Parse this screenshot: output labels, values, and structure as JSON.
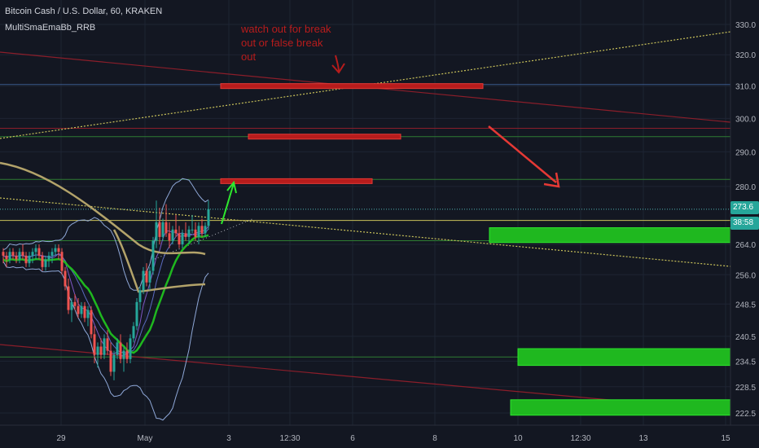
{
  "header": {
    "title": "Bitcoin Cash / U.S. Dollar, 60, KRAKEN",
    "indicator": "MultiSmaEmaBb_RRB"
  },
  "price_labels": {
    "last_price": "273.6",
    "countdown": "38:58"
  },
  "annotation": {
    "lines": [
      "watch out for break",
      "out or  false break",
      "out"
    ]
  },
  "colors": {
    "background": "#131722",
    "grid": "#1e2433",
    "axis_text": "#b2b5be",
    "up_candle": "#26a69a",
    "down_candle": "#ef5350",
    "annotation_red": "#b71c1c",
    "zone_green": "#1fb81f",
    "trend_yellow": "#c9c25a",
    "trend_red": "#8b1e2a",
    "hline_green": "#2e7d32",
    "hline_blue": "#2962ff",
    "last_price": "#26a69a"
  },
  "chart_data": {
    "type": "candlestick",
    "title": "Bitcoin Cash / U.S. Dollar, 60, KRAKEN",
    "y_axis": {
      "scale": "log",
      "ticks": [
        "330.0",
        "320.0",
        "310.0",
        "300.0",
        "290.0",
        "280.0",
        "273.6",
        "264.0",
        "256.0",
        "248.5",
        "240.5",
        "234.5",
        "228.5",
        "222.5"
      ],
      "range": [
        220,
        335
      ]
    },
    "x_axis": {
      "ticks": [
        "29",
        "May",
        "3",
        "12:30",
        "6",
        "8",
        "10",
        "12:30",
        "13",
        "15"
      ]
    },
    "grid": true,
    "last_price": 273.6,
    "candles": [
      {
        "o": 262,
        "h": 263,
        "l": 259,
        "c": 261
      },
      {
        "o": 261,
        "h": 262,
        "l": 258,
        "c": 260
      },
      {
        "o": 260,
        "h": 263,
        "l": 259,
        "c": 262
      },
      {
        "o": 262,
        "h": 263,
        "l": 260,
        "c": 261
      },
      {
        "o": 261,
        "h": 262,
        "l": 259,
        "c": 260
      },
      {
        "o": 260,
        "h": 263,
        "l": 259,
        "c": 262
      },
      {
        "o": 262,
        "h": 264,
        "l": 260,
        "c": 261
      },
      {
        "o": 261,
        "h": 262,
        "l": 258,
        "c": 259
      },
      {
        "o": 259,
        "h": 262,
        "l": 258,
        "c": 261
      },
      {
        "o": 261,
        "h": 263,
        "l": 259,
        "c": 262
      },
      {
        "o": 262,
        "h": 264,
        "l": 260,
        "c": 263
      },
      {
        "o": 263,
        "h": 264,
        "l": 260,
        "c": 261
      },
      {
        "o": 261,
        "h": 262,
        "l": 257,
        "c": 258
      },
      {
        "o": 258,
        "h": 261,
        "l": 257,
        "c": 260
      },
      {
        "o": 260,
        "h": 262,
        "l": 258,
        "c": 261
      },
      {
        "o": 261,
        "h": 263,
        "l": 259,
        "c": 262
      },
      {
        "o": 262,
        "h": 264,
        "l": 261,
        "c": 263
      },
      {
        "o": 263,
        "h": 264,
        "l": 260,
        "c": 262
      },
      {
        "o": 262,
        "h": 263,
        "l": 256,
        "c": 257
      },
      {
        "o": 257,
        "h": 258,
        "l": 252,
        "c": 253
      },
      {
        "o": 253,
        "h": 255,
        "l": 246,
        "c": 247
      },
      {
        "o": 247,
        "h": 250,
        "l": 244,
        "c": 249
      },
      {
        "o": 249,
        "h": 251,
        "l": 247,
        "c": 248
      },
      {
        "o": 248,
        "h": 250,
        "l": 245,
        "c": 246
      },
      {
        "o": 246,
        "h": 249,
        "l": 245,
        "c": 248
      },
      {
        "o": 248,
        "h": 249,
        "l": 244,
        "c": 245
      },
      {
        "o": 245,
        "h": 248,
        "l": 243,
        "c": 247
      },
      {
        "o": 247,
        "h": 248,
        "l": 240,
        "c": 241
      },
      {
        "o": 241,
        "h": 243,
        "l": 234,
        "c": 236
      },
      {
        "o": 236,
        "h": 239,
        "l": 233,
        "c": 238
      },
      {
        "o": 238,
        "h": 240,
        "l": 235,
        "c": 236
      },
      {
        "o": 236,
        "h": 241,
        "l": 235,
        "c": 240
      },
      {
        "o": 240,
        "h": 242,
        "l": 236,
        "c": 237
      },
      {
        "o": 237,
        "h": 239,
        "l": 231,
        "c": 232
      },
      {
        "o": 232,
        "h": 237,
        "l": 230,
        "c": 236
      },
      {
        "o": 236,
        "h": 240,
        "l": 235,
        "c": 239
      },
      {
        "o": 239,
        "h": 241,
        "l": 234,
        "c": 235
      },
      {
        "o": 235,
        "h": 238,
        "l": 232,
        "c": 237
      },
      {
        "o": 237,
        "h": 239,
        "l": 234,
        "c": 235
      },
      {
        "o": 235,
        "h": 241,
        "l": 234,
        "c": 240
      },
      {
        "o": 240,
        "h": 244,
        "l": 239,
        "c": 243
      },
      {
        "o": 243,
        "h": 250,
        "l": 242,
        "c": 249
      },
      {
        "o": 249,
        "h": 253,
        "l": 247,
        "c": 252
      },
      {
        "o": 252,
        "h": 258,
        "l": 251,
        "c": 257
      },
      {
        "o": 257,
        "h": 259,
        "l": 253,
        "c": 254
      },
      {
        "o": 254,
        "h": 258,
        "l": 252,
        "c": 257
      },
      {
        "o": 257,
        "h": 266,
        "l": 256,
        "c": 265
      },
      {
        "o": 265,
        "h": 276,
        "l": 263,
        "c": 270
      },
      {
        "o": 270,
        "h": 274,
        "l": 264,
        "c": 266
      },
      {
        "o": 266,
        "h": 271,
        "l": 265,
        "c": 270
      },
      {
        "o": 270,
        "h": 275,
        "l": 266,
        "c": 267
      },
      {
        "o": 267,
        "h": 270,
        "l": 263,
        "c": 265
      },
      {
        "o": 265,
        "h": 269,
        "l": 264,
        "c": 268
      },
      {
        "o": 268,
        "h": 272,
        "l": 266,
        "c": 267
      },
      {
        "o": 267,
        "h": 269,
        "l": 263,
        "c": 264
      },
      {
        "o": 264,
        "h": 268,
        "l": 263,
        "c": 267
      },
      {
        "o": 267,
        "h": 270,
        "l": 265,
        "c": 266
      },
      {
        "o": 266,
        "h": 269,
        "l": 264,
        "c": 268
      },
      {
        "o": 268,
        "h": 272,
        "l": 267,
        "c": 268
      },
      {
        "o": 268,
        "h": 270,
        "l": 265,
        "c": 266
      },
      {
        "o": 266,
        "h": 270,
        "l": 264,
        "c": 269
      },
      {
        "o": 269,
        "h": 271,
        "l": 266,
        "c": 267
      },
      {
        "o": 267,
        "h": 270,
        "l": 266,
        "c": 269
      },
      {
        "o": 269,
        "h": 276,
        "l": 268,
        "c": 273.6
      }
    ],
    "horizontal_levels": [
      {
        "price": 310.5,
        "color": "blue"
      },
      {
        "price": 297,
        "color": "red"
      },
      {
        "price": 294.5,
        "color": "green"
      },
      {
        "price": 282,
        "color": "green"
      },
      {
        "price": 273.6,
        "color": "teal-dotted"
      },
      {
        "price": 270.5,
        "color": "yellow"
      },
      {
        "price": 265,
        "color": "green"
      },
      {
        "price": 235.5,
        "color": "green"
      }
    ],
    "resistance_zones": [
      {
        "from": "3",
        "to": "8",
        "price": 310
      },
      {
        "from": "3",
        "to": "6",
        "price": 294.5
      },
      {
        "from": "3",
        "to": "6",
        "price": 281.5
      }
    ],
    "support_zones": [
      {
        "from": "8",
        "to": "15",
        "low": 264.5,
        "high": 268.5
      },
      {
        "from": "10",
        "to": "15",
        "low": 233.5,
        "high": 237.5
      },
      {
        "from": "10",
        "to": "15",
        "low": 222,
        "high": 225.5
      }
    ]
  }
}
